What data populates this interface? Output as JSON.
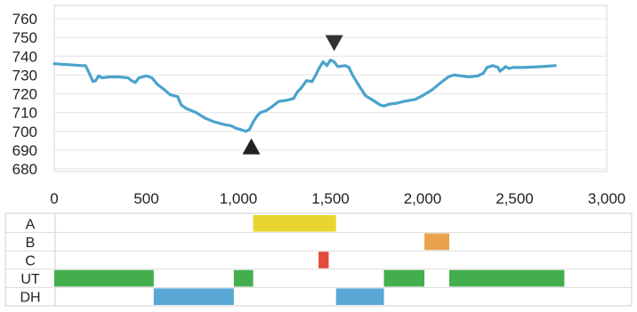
{
  "chart_data": [
    {
      "type": "line",
      "title": "",
      "xlabel": "",
      "ylabel": "",
      "xlim": [
        0,
        3000
      ],
      "ylim": [
        680,
        760
      ],
      "x_ticks": [
        0,
        500,
        1000,
        1500,
        2000,
        2500,
        3000
      ],
      "x_tick_labels": [
        "0",
        "500",
        "1,000",
        "1,500",
        "2,000",
        "2,500",
        "3,000"
      ],
      "y_ticks": [
        680,
        690,
        700,
        710,
        720,
        730,
        740,
        750,
        760
      ],
      "y_tick_labels": [
        "680",
        "690",
        "700",
        "710",
        "720",
        "730",
        "740",
        "750",
        "760"
      ],
      "grid": "horizontal",
      "line_color": "#4aa3cc",
      "series": [
        {
          "name": "",
          "points": [
            [
              0,
              736
            ],
            [
              80,
              735.5
            ],
            [
              150,
              735
            ],
            [
              170,
              735
            ],
            [
              190,
              731
            ],
            [
              210,
              726.5
            ],
            [
              225,
              727
            ],
            [
              240,
              729.5
            ],
            [
              260,
              728.5
            ],
            [
              300,
              729
            ],
            [
              350,
              729
            ],
            [
              400,
              728.5
            ],
            [
              420,
              727
            ],
            [
              440,
              726
            ],
            [
              460,
              728.5
            ],
            [
              500,
              729.5
            ],
            [
              530,
              728.5
            ],
            [
              560,
              725
            ],
            [
              600,
              722
            ],
            [
              630,
              719.5
            ],
            [
              670,
              718.5
            ],
            [
              690,
              714
            ],
            [
              720,
              712
            ],
            [
              770,
              710
            ],
            [
              820,
              707
            ],
            [
              870,
              705
            ],
            [
              930,
              703.5
            ],
            [
              960,
              703
            ],
            [
              990,
              701.5
            ],
            [
              1010,
              701
            ],
            [
              1040,
              700
            ],
            [
              1060,
              701
            ],
            [
              1080,
              705
            ],
            [
              1100,
              708
            ],
            [
              1120,
              710
            ],
            [
              1150,
              711
            ],
            [
              1180,
              713
            ],
            [
              1220,
              716
            ],
            [
              1260,
              716.5
            ],
            [
              1300,
              717.5
            ],
            [
              1320,
              721
            ],
            [
              1340,
              723
            ],
            [
              1370,
              727
            ],
            [
              1400,
              726.5
            ],
            [
              1420,
              730
            ],
            [
              1440,
              734
            ],
            [
              1460,
              737
            ],
            [
              1480,
              735
            ],
            [
              1500,
              738
            ],
            [
              1520,
              737
            ],
            [
              1540,
              734.5
            ],
            [
              1580,
              735
            ],
            [
              1600,
              734
            ],
            [
              1620,
              730
            ],
            [
              1650,
              725
            ],
            [
              1690,
              719
            ],
            [
              1740,
              716
            ],
            [
              1770,
              714
            ],
            [
              1790,
              713.5
            ],
            [
              1820,
              714.5
            ],
            [
              1860,
              715
            ],
            [
              1900,
              716
            ],
            [
              1960,
              717
            ],
            [
              2000,
              719
            ],
            [
              2050,
              722
            ],
            [
              2100,
              726
            ],
            [
              2140,
              729
            ],
            [
              2170,
              730
            ],
            [
              2210,
              729.5
            ],
            [
              2250,
              729
            ],
            [
              2300,
              729.5
            ],
            [
              2330,
              731
            ],
            [
              2350,
              734
            ],
            [
              2380,
              735
            ],
            [
              2410,
              734
            ],
            [
              2420,
              732
            ],
            [
              2440,
              733.5
            ],
            [
              2450,
              734.5
            ],
            [
              2470,
              733.5
            ],
            [
              2490,
              734
            ],
            [
              2550,
              734
            ],
            [
              2650,
              734.5
            ],
            [
              2720,
              735
            ]
          ]
        }
      ],
      "annotations": [
        {
          "marker": "triangle-up",
          "x": 1070,
          "y": 692,
          "color": "#222222"
        },
        {
          "marker": "triangle-down",
          "x": 1520,
          "y": 747,
          "color": "#333333"
        }
      ]
    },
    {
      "type": "bar",
      "orientation": "horizontal",
      "title": "",
      "xlim": [
        0,
        3000
      ],
      "categories": [
        "A",
        "B",
        "C",
        "UT",
        "DH"
      ],
      "segments": [
        {
          "category": "A",
          "start": 1080,
          "end": 1530,
          "color": "#e8d530"
        },
        {
          "category": "B",
          "start": 2010,
          "end": 2145,
          "color": "#eaa24d"
        },
        {
          "category": "C",
          "start": 1435,
          "end": 1490,
          "color": "#e24a3b"
        },
        {
          "category": "UT",
          "start": 0,
          "end": 540,
          "color": "#43ae4c"
        },
        {
          "category": "UT",
          "start": 975,
          "end": 1080,
          "color": "#43ae4c"
        },
        {
          "category": "UT",
          "start": 1790,
          "end": 2010,
          "color": "#43ae4c"
        },
        {
          "category": "UT",
          "start": 2145,
          "end": 2770,
          "color": "#43ae4c"
        },
        {
          "category": "DH",
          "start": 540,
          "end": 975,
          "color": "#58a7d5"
        },
        {
          "category": "DH",
          "start": 1530,
          "end": 1790,
          "color": "#58a7d5"
        }
      ]
    }
  ]
}
